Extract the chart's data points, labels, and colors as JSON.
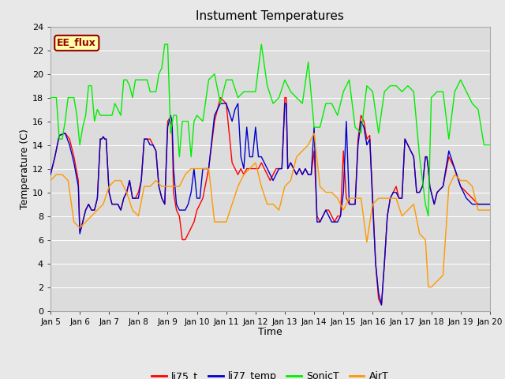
{
  "title": "Instument Temperatures",
  "xlabel": "Time",
  "ylabel": "Temperature (C)",
  "ylim": [
    0,
    24
  ],
  "xlim": [
    5,
    20
  ],
  "xticks": [
    5,
    6,
    7,
    8,
    9,
    10,
    11,
    12,
    13,
    14,
    15,
    16,
    17,
    18,
    19,
    20
  ],
  "xtick_labels": [
    "Jan 5",
    "Jan 6",
    "Jan 7",
    "Jan 8",
    "Jan 9",
    "Jan 10",
    "Jan 11",
    "Jan 12",
    "Jan 13",
    "Jan 14",
    "Jan 15",
    "Jan 16",
    "Jan 17",
    "Jan 18",
    "Jan 19",
    "Jan 20"
  ],
  "yticks": [
    0,
    2,
    4,
    6,
    8,
    10,
    12,
    14,
    16,
    18,
    20,
    22,
    24
  ],
  "fig_bg_color": "#e8e8e8",
  "plot_bg_color": "#dcdcdc",
  "grid_color": "#ffffff",
  "annotation_text": "EE_flux",
  "annotation_bg": "#ffffaa",
  "annotation_border": "#990000",
  "colors": {
    "li75_t": "#ff0000",
    "li77_temp": "#0000cc",
    "SonicT": "#00ee00",
    "AirT": "#ff9900"
  },
  "legend_labels": [
    "li75_t",
    "li77_temp",
    "SonicT",
    "AirT"
  ],
  "li75_t_x": [
    5.0,
    5.15,
    5.3,
    5.5,
    5.65,
    5.8,
    5.95,
    6.0,
    6.05,
    6.1,
    6.2,
    6.3,
    6.4,
    6.5,
    6.6,
    6.7,
    6.75,
    6.8,
    6.85,
    6.9,
    7.0,
    7.1,
    7.2,
    7.3,
    7.4,
    7.5,
    7.6,
    7.7,
    7.8,
    7.9,
    8.0,
    8.1,
    8.2,
    8.3,
    8.4,
    8.5,
    8.6,
    8.7,
    8.8,
    8.9,
    9.0,
    9.05,
    9.1,
    9.15,
    9.2,
    9.3,
    9.4,
    9.5,
    9.6,
    9.7,
    9.8,
    9.9,
    10.0,
    10.1,
    10.2,
    10.4,
    10.6,
    10.8,
    11.0,
    11.2,
    11.3,
    11.4,
    11.5,
    11.6,
    11.7,
    11.8,
    11.9,
    12.0,
    12.1,
    12.2,
    12.3,
    12.4,
    12.5,
    12.6,
    12.7,
    12.8,
    12.9,
    13.0,
    13.05,
    13.1,
    13.2,
    13.3,
    13.4,
    13.5,
    13.6,
    13.7,
    13.8,
    13.9,
    14.0,
    14.1,
    14.2,
    14.3,
    14.4,
    14.5,
    14.6,
    14.7,
    14.8,
    14.9,
    15.0,
    15.1,
    15.2,
    15.3,
    15.4,
    15.5,
    15.6,
    15.7,
    15.8,
    15.9,
    16.0,
    16.1,
    16.2,
    16.3,
    16.4,
    16.5,
    16.6,
    16.7,
    16.8,
    16.9,
    17.0,
    17.1,
    17.2,
    17.3,
    17.4,
    17.5,
    17.6,
    17.7,
    17.8,
    17.85,
    17.9,
    17.95,
    18.0,
    18.05,
    18.1,
    18.2,
    18.4,
    18.6,
    18.8,
    19.0,
    19.2,
    19.4,
    19.6,
    19.8,
    20.0
  ],
  "li75_t_y": [
    11.5,
    13.0,
    14.8,
    15.0,
    14.5,
    13.0,
    11.0,
    6.7,
    7.0,
    7.5,
    8.5,
    9.0,
    8.5,
    8.5,
    9.5,
    14.5,
    14.5,
    14.7,
    14.5,
    14.5,
    10.0,
    9.0,
    9.0,
    9.0,
    8.5,
    9.5,
    10.0,
    11.0,
    9.5,
    9.5,
    10.0,
    11.0,
    14.5,
    14.5,
    14.5,
    14.0,
    13.5,
    10.5,
    9.5,
    9.0,
    16.0,
    16.2,
    16.0,
    15.5,
    10.0,
    8.5,
    8.0,
    6.0,
    6.0,
    6.5,
    7.0,
    7.5,
    8.5,
    9.0,
    9.5,
    12.0,
    16.0,
    18.0,
    17.5,
    12.5,
    12.0,
    11.5,
    12.0,
    11.5,
    12.0,
    12.0,
    12.0,
    12.0,
    12.0,
    12.5,
    12.0,
    11.5,
    11.0,
    11.5,
    12.0,
    12.0,
    12.0,
    18.0,
    18.0,
    12.0,
    12.5,
    12.0,
    11.5,
    12.0,
    11.5,
    12.0,
    11.5,
    11.5,
    13.5,
    8.0,
    7.5,
    8.0,
    8.5,
    8.5,
    8.0,
    7.5,
    8.0,
    8.0,
    13.5,
    9.5,
    9.0,
    9.0,
    9.0,
    14.5,
    16.5,
    16.0,
    14.5,
    14.8,
    9.5,
    4.0,
    1.0,
    0.5,
    4.0,
    8.0,
    9.5,
    10.0,
    10.5,
    9.5,
    9.5,
    14.5,
    14.0,
    13.5,
    13.0,
    10.0,
    10.0,
    10.5,
    13.0,
    13.0,
    12.0,
    10.5,
    10.0,
    9.5,
    9.0,
    10.0,
    10.5,
    13.0,
    12.0,
    10.5,
    10.0,
    9.5,
    9.0,
    9.0,
    9.0
  ],
  "li77_temp_x": [
    5.0,
    5.15,
    5.3,
    5.5,
    5.65,
    5.8,
    5.95,
    6.0,
    6.05,
    6.1,
    6.2,
    6.3,
    6.4,
    6.5,
    6.6,
    6.7,
    6.75,
    6.8,
    6.85,
    6.9,
    7.0,
    7.1,
    7.2,
    7.3,
    7.4,
    7.5,
    7.6,
    7.7,
    7.8,
    7.9,
    8.0,
    8.1,
    8.2,
    8.3,
    8.4,
    8.5,
    8.6,
    8.7,
    8.8,
    8.9,
    9.0,
    9.05,
    9.1,
    9.15,
    9.2,
    9.3,
    9.4,
    9.5,
    9.6,
    9.7,
    9.8,
    9.9,
    10.0,
    10.1,
    10.2,
    10.4,
    10.6,
    10.8,
    11.0,
    11.2,
    11.3,
    11.4,
    11.5,
    11.6,
    11.7,
    11.8,
    11.9,
    12.0,
    12.1,
    12.2,
    12.3,
    12.4,
    12.5,
    12.6,
    12.7,
    12.8,
    12.9,
    13.0,
    13.05,
    13.1,
    13.2,
    13.3,
    13.4,
    13.5,
    13.6,
    13.7,
    13.8,
    13.9,
    14.0,
    14.1,
    14.2,
    14.3,
    14.4,
    14.5,
    14.6,
    14.7,
    14.8,
    14.9,
    15.0,
    15.1,
    15.2,
    15.3,
    15.4,
    15.5,
    15.6,
    15.7,
    15.8,
    15.9,
    16.0,
    16.1,
    16.2,
    16.3,
    16.4,
    16.5,
    16.6,
    16.7,
    16.8,
    16.9,
    17.0,
    17.1,
    17.2,
    17.3,
    17.4,
    17.5,
    17.6,
    17.7,
    17.8,
    17.85,
    17.9,
    17.95,
    18.0,
    18.05,
    18.1,
    18.2,
    18.4,
    18.6,
    18.8,
    19.0,
    19.2,
    19.4,
    19.6,
    19.8,
    20.0
  ],
  "li77_temp_y": [
    11.5,
    13.0,
    14.8,
    15.0,
    14.0,
    12.5,
    10.5,
    6.5,
    7.0,
    7.5,
    8.5,
    9.0,
    8.5,
    8.5,
    9.5,
    14.5,
    14.5,
    14.7,
    14.5,
    14.5,
    10.0,
    9.0,
    9.0,
    9.0,
    8.5,
    9.5,
    10.0,
    11.0,
    9.5,
    9.5,
    9.5,
    11.0,
    14.5,
    14.5,
    14.0,
    14.0,
    13.5,
    10.5,
    9.5,
    9.0,
    15.5,
    16.0,
    16.5,
    16.0,
    12.0,
    9.0,
    8.5,
    8.5,
    8.5,
    9.0,
    10.0,
    12.0,
    9.5,
    9.5,
    12.0,
    12.0,
    16.5,
    17.5,
    17.5,
    16.0,
    17.0,
    17.5,
    13.0,
    12.0,
    15.5,
    13.0,
    13.0,
    15.5,
    13.0,
    13.0,
    12.5,
    12.0,
    11.5,
    11.0,
    11.5,
    12.0,
    12.0,
    17.5,
    17.5,
    12.0,
    12.5,
    12.0,
    11.5,
    12.0,
    11.5,
    12.0,
    11.5,
    11.5,
    15.5,
    7.5,
    7.5,
    8.0,
    8.5,
    8.0,
    7.5,
    7.5,
    7.5,
    8.0,
    10.0,
    16.0,
    9.0,
    9.0,
    9.0,
    14.0,
    16.0,
    15.5,
    14.0,
    14.5,
    9.0,
    4.0,
    1.5,
    0.5,
    4.0,
    8.0,
    9.5,
    10.0,
    10.0,
    9.5,
    9.5,
    14.5,
    14.0,
    13.5,
    13.0,
    10.0,
    10.0,
    10.5,
    13.0,
    13.0,
    12.0,
    10.5,
    10.0,
    9.5,
    9.0,
    10.0,
    10.5,
    13.5,
    12.0,
    10.5,
    9.5,
    9.0,
    9.0,
    9.0,
    9.0
  ],
  "SonicT_x": [
    5.0,
    5.1,
    5.2,
    5.3,
    5.4,
    5.5,
    5.6,
    5.7,
    5.8,
    5.9,
    6.0,
    6.1,
    6.2,
    6.3,
    6.4,
    6.5,
    6.6,
    6.7,
    6.8,
    6.9,
    7.0,
    7.1,
    7.2,
    7.3,
    7.4,
    7.5,
    7.6,
    7.7,
    7.8,
    7.9,
    8.0,
    8.1,
    8.2,
    8.3,
    8.4,
    8.5,
    8.6,
    8.7,
    8.8,
    8.9,
    9.0,
    9.1,
    9.2,
    9.3,
    9.4,
    9.5,
    9.6,
    9.7,
    9.8,
    9.9,
    10.0,
    10.2,
    10.4,
    10.6,
    10.8,
    11.0,
    11.2,
    11.4,
    11.6,
    11.8,
    12.0,
    12.2,
    12.4,
    12.6,
    12.8,
    13.0,
    13.2,
    13.4,
    13.6,
    13.8,
    14.0,
    14.2,
    14.4,
    14.6,
    14.8,
    15.0,
    15.2,
    15.4,
    15.6,
    15.8,
    16.0,
    16.2,
    16.4,
    16.6,
    16.8,
    17.0,
    17.2,
    17.4,
    17.6,
    17.8,
    17.9,
    18.0,
    18.2,
    18.4,
    18.6,
    18.8,
    19.0,
    19.2,
    19.4,
    19.6,
    19.8,
    20.0
  ],
  "SonicT_y": [
    18.0,
    18.0,
    18.0,
    14.5,
    14.5,
    16.0,
    18.0,
    18.0,
    18.0,
    16.5,
    14.0,
    15.5,
    16.5,
    19.0,
    19.0,
    16.0,
    17.0,
    16.5,
    16.5,
    16.5,
    16.5,
    16.5,
    17.5,
    17.0,
    16.5,
    19.5,
    19.5,
    19.0,
    18.0,
    19.5,
    19.5,
    19.5,
    19.5,
    19.5,
    18.5,
    18.5,
    18.5,
    20.0,
    20.5,
    22.5,
    22.5,
    15.0,
    16.5,
    16.5,
    13.0,
    16.0,
    16.0,
    16.0,
    13.0,
    16.0,
    16.5,
    16.0,
    19.5,
    20.0,
    17.5,
    19.5,
    19.5,
    18.0,
    18.5,
    18.5,
    18.5,
    22.5,
    19.0,
    17.5,
    18.0,
    19.5,
    18.5,
    18.0,
    17.5,
    21.0,
    15.5,
    15.5,
    17.5,
    17.5,
    16.5,
    18.5,
    19.5,
    15.5,
    15.0,
    19.0,
    18.5,
    15.0,
    18.5,
    19.0,
    19.0,
    18.5,
    19.0,
    18.5,
    13.0,
    9.0,
    8.0,
    18.0,
    18.5,
    18.5,
    14.5,
    18.5,
    19.5,
    18.5,
    17.5,
    17.0,
    14.0,
    14.0
  ],
  "AirT_x": [
    5.0,
    5.2,
    5.4,
    5.6,
    5.8,
    6.0,
    6.2,
    6.4,
    6.6,
    6.8,
    7.0,
    7.2,
    7.4,
    7.6,
    7.8,
    8.0,
    8.2,
    8.4,
    8.6,
    8.8,
    9.0,
    9.2,
    9.4,
    9.6,
    9.8,
    10.0,
    10.2,
    10.4,
    10.6,
    10.8,
    11.0,
    11.2,
    11.4,
    11.6,
    11.8,
    12.0,
    12.2,
    12.4,
    12.6,
    12.8,
    13.0,
    13.2,
    13.4,
    13.6,
    13.8,
    14.0,
    14.2,
    14.4,
    14.6,
    14.8,
    15.0,
    15.2,
    15.4,
    15.6,
    15.8,
    16.0,
    16.2,
    16.4,
    16.6,
    16.8,
    17.0,
    17.2,
    17.4,
    17.6,
    17.8,
    17.9,
    18.0,
    18.2,
    18.4,
    18.6,
    18.8,
    19.0,
    19.2,
    19.4,
    19.6,
    19.8,
    20.0
  ],
  "AirT_y": [
    11.0,
    11.5,
    11.5,
    11.0,
    7.5,
    7.0,
    7.5,
    8.0,
    8.5,
    9.0,
    10.5,
    11.0,
    11.0,
    10.0,
    8.5,
    8.0,
    10.5,
    10.5,
    11.0,
    10.5,
    10.5,
    10.5,
    10.5,
    11.5,
    12.0,
    12.0,
    12.0,
    12.0,
    7.5,
    7.5,
    7.5,
    9.0,
    10.5,
    11.5,
    12.0,
    12.5,
    10.5,
    9.0,
    9.0,
    8.5,
    10.5,
    11.0,
    13.0,
    13.5,
    14.0,
    15.0,
    10.5,
    10.0,
    10.0,
    9.5,
    8.5,
    9.5,
    9.5,
    9.5,
    5.8,
    9.0,
    9.5,
    9.5,
    9.5,
    9.5,
    8.0,
    8.5,
    9.0,
    6.5,
    6.0,
    2.0,
    2.0,
    2.5,
    3.0,
    10.5,
    11.5,
    11.0,
    11.0,
    10.5,
    8.5,
    8.5,
    8.5
  ]
}
